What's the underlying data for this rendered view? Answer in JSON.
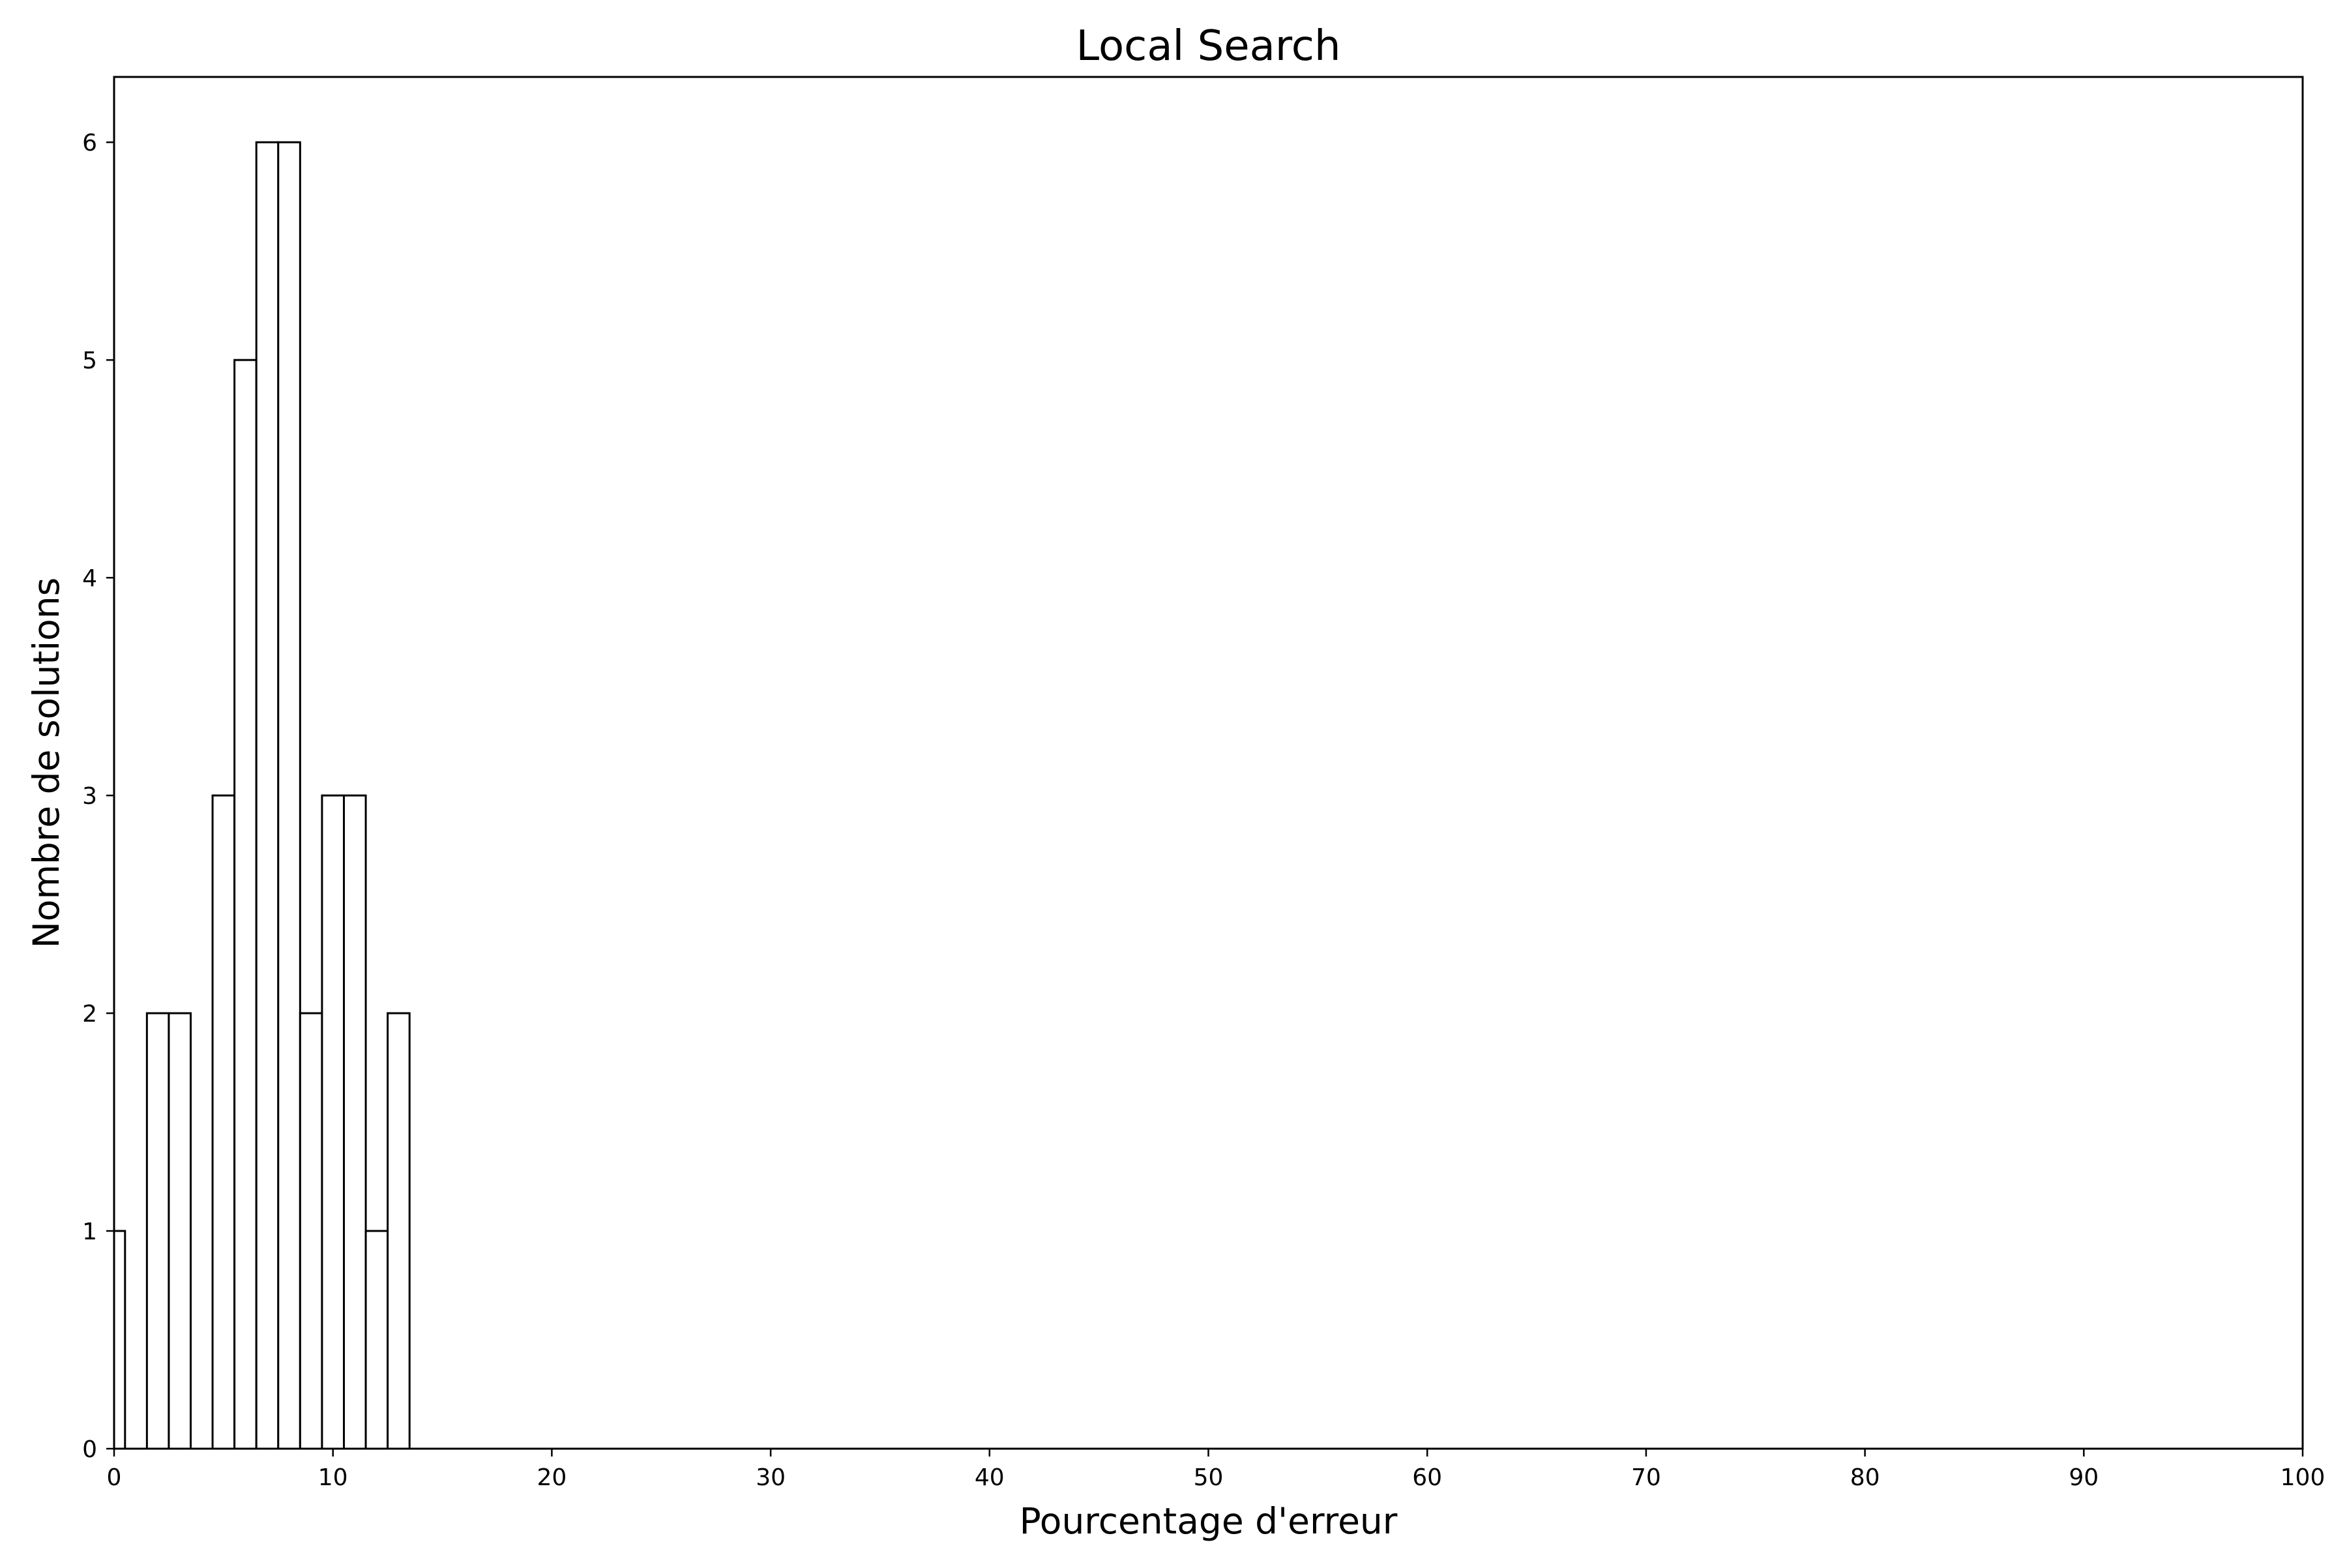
{
  "chart_data": {
    "type": "bar",
    "subtype": "histogram",
    "title": "Local Search",
    "xlabel": "Pourcentage d'erreur",
    "ylabel": "Nombre de solutions",
    "xlim": [
      0,
      100
    ],
    "ylim": [
      0,
      6.3
    ],
    "xticks": [
      0,
      10,
      20,
      30,
      40,
      50,
      60,
      70,
      80,
      90,
      100
    ],
    "yticks": [
      0,
      1,
      2,
      3,
      4,
      5,
      6
    ],
    "bin_width": 1,
    "bins": [
      {
        "x0": 0,
        "x1": 0.5,
        "count": 1
      },
      {
        "x0": 1.5,
        "x1": 2.5,
        "count": 2
      },
      {
        "x0": 2.5,
        "x1": 3.5,
        "count": 2
      },
      {
        "x0": 4.5,
        "x1": 5.5,
        "count": 3
      },
      {
        "x0": 5.5,
        "x1": 6.5,
        "count": 5
      },
      {
        "x0": 6.5,
        "x1": 7.5,
        "count": 6
      },
      {
        "x0": 7.5,
        "x1": 8.5,
        "count": 6
      },
      {
        "x0": 8.5,
        "x1": 9.5,
        "count": 2
      },
      {
        "x0": 9.5,
        "x1": 10.5,
        "count": 3
      },
      {
        "x0": 10.5,
        "x1": 11.5,
        "count": 3
      },
      {
        "x0": 11.5,
        "x1": 12.5,
        "count": 1
      },
      {
        "x0": 12.5,
        "x1": 13.5,
        "count": 2
      }
    ],
    "bar_fill": "#ffffff",
    "bar_edge": "#000000",
    "grid": false,
    "legend": "none"
  }
}
